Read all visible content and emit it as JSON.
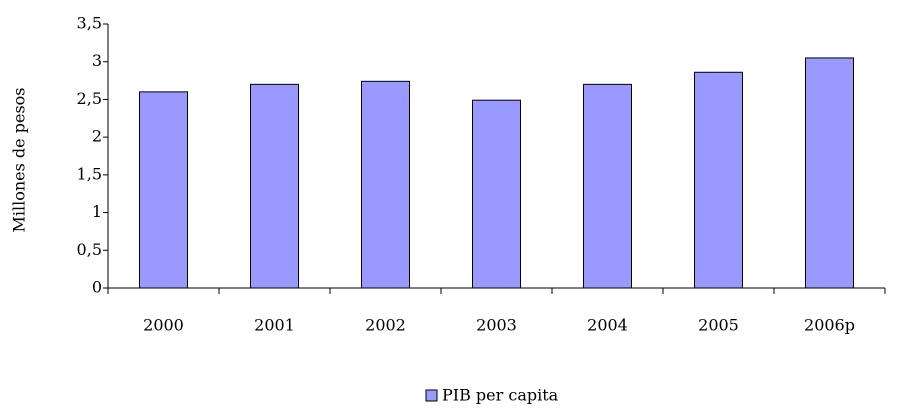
{
  "chart_data": {
    "type": "bar",
    "y_label": "Millones de pesos",
    "categories": [
      "2000",
      "2001",
      "2002",
      "2003",
      "2004",
      "2005",
      "2006p"
    ],
    "series": [
      {
        "name": "PIB per capita",
        "color": "#9999ff",
        "values": [
          2.6,
          2.7,
          2.74,
          2.49,
          2.7,
          2.86,
          3.05
        ]
      }
    ],
    "ylim": [
      0,
      3.5
    ],
    "yticks": [
      0,
      {
        "value": 0.5,
        "label": "0,5"
      },
      1,
      {
        "value": 1.5,
        "label": "1,5"
      },
      2,
      {
        "value": 2.5,
        "label": "2,5"
      },
      3,
      {
        "value": 3.5,
        "label": "3,5"
      }
    ],
    "legend": "bottom"
  }
}
